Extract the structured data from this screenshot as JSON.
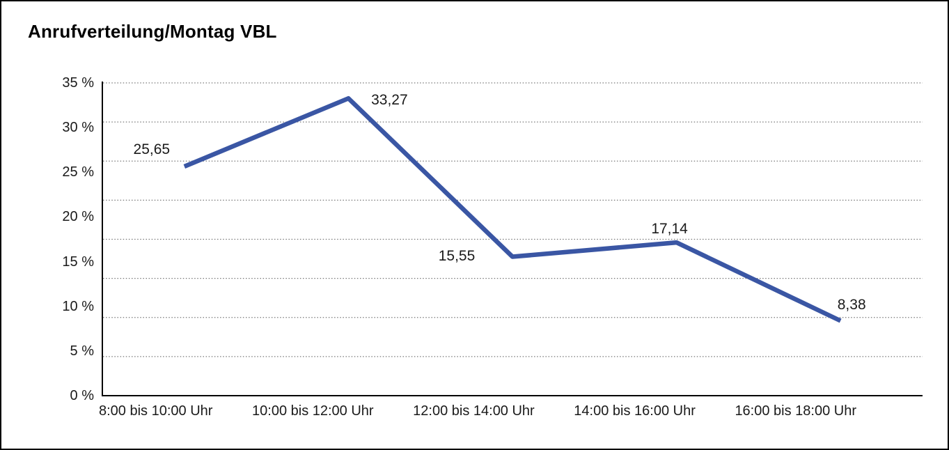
{
  "window": {
    "background_color": "#ffffff",
    "border_color": "#000000"
  },
  "chart_data": {
    "type": "line",
    "title": "Anrufverteilung/Montag VBL",
    "categories": [
      "8:00 bis 10:00 Uhr",
      "10:00 bis 12:00 Uhr",
      "12:00 bis 14:00 Uhr",
      "14:00 bis 16:00 Uhr",
      "16:00 bis 18:00 Uhr"
    ],
    "values": [
      25.65,
      33.27,
      15.55,
      17.14,
      8.38
    ],
    "point_labels": [
      "25,65",
      "33,27",
      "15,55",
      "17,14",
      "8,38"
    ],
    "y_tick_labels": [
      "35 %",
      "30 %",
      "25 %",
      "20 %",
      "15 %",
      "10 %",
      "5 %",
      "0 %"
    ],
    "y_tick_values": [
      35,
      30,
      25,
      20,
      15,
      10,
      5,
      0
    ],
    "ylim": [
      0,
      35
    ],
    "xlabel": "",
    "ylabel": "",
    "legend": "none",
    "grid": true,
    "grid_divisions": 8,
    "grid_style": "dotted",
    "line_color": "#3A56A4",
    "axis_color": "#000000",
    "gridline_color": "#777777",
    "label_color": "#1a1a1a"
  }
}
